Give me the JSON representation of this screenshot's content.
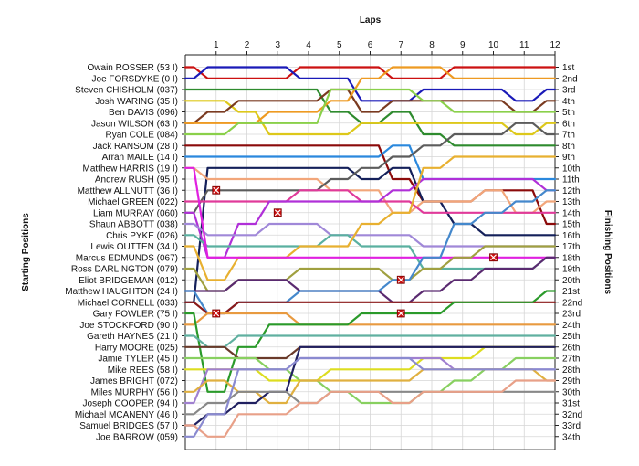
{
  "chart_data": {
    "type": "line",
    "title": "",
    "xlabel": "Laps",
    "ylabel_left": "Starting Positions",
    "ylabel_right": "Finishing Positions",
    "x": [
      0,
      1,
      2,
      3,
      4,
      5,
      6,
      7,
      8,
      9,
      10,
      11,
      12
    ],
    "x_tick_labels": [
      "1",
      "2",
      "3",
      "4",
      "5",
      "6",
      "7",
      "8",
      "9",
      "10",
      "11",
      "12"
    ],
    "ylim": [
      1,
      34
    ],
    "y_inverted": true,
    "grid": true,
    "drivers": [
      "Owain ROSSER (53 I)",
      "Joe FORSDYKE (0 I)",
      "Steven CHISHOLM (037)",
      "Josh WARING (35 I)",
      "Ben DAVIS (096)",
      "Jason WILSON (63 I)",
      "Ryan COLE (084)",
      "Jack RANSOM (28 I)",
      "Arran MAILE (14 I)",
      "Matthew HARRIS (19 I)",
      "Andrew RUSH (95 I)",
      "Matthew ALLNUTT (36 I)",
      "Michael GREEN (022)",
      "Liam MURRAY (060)",
      "Shaun ABBOTT (038)",
      "Chris PYKE (026)",
      "Lewis OUTTEN (34 I)",
      "Marcus EDMUNDS (067)",
      "Ross DARLINGTON (079)",
      "Eliot BRIDGEMAN (012)",
      "Matthew HAUGHTON (24 I)",
      "Michael CORNELL (033)",
      "Gary FOWLER (75 I)",
      "Joe STOCKFORD (90 I)",
      "Gareth HAYNES (21 I)",
      "Harry MOORE (025)",
      "Jamie TYLER (45 I)",
      "Mike REES (58 I)",
      "James BRIGHT (072)",
      "Miles MURPHY (56 I)",
      "Joseph COOPER (94 I)",
      "Michael MCANENY (46 I)",
      "Samuel BRIDGES (57 I)",
      "Joe BARROW (059)"
    ],
    "finishing_labels": [
      "1st",
      "2nd",
      "3rd",
      "4th",
      "5th",
      "6th",
      "7th",
      "8th",
      "9th",
      "10th",
      "11th",
      "12th",
      "13th",
      "14th",
      "15th",
      "16th",
      "17th",
      "18th",
      "19th",
      "20th",
      "21st",
      "22nd",
      "23rd",
      "24th",
      "25th",
      "26th",
      "27th",
      "28th",
      "29th",
      "30th",
      "31st",
      "32nd",
      "33rd",
      "34th"
    ],
    "series": [
      {
        "driver": "Owain ROSSER (53 I)",
        "color": "#cc1111",
        "positions": [
          1,
          2,
          2,
          2,
          1,
          1,
          1,
          2,
          2,
          1,
          1,
          1,
          1
        ]
      },
      {
        "driver": "Joe FORSDYKE (0 I)",
        "color": "#1a1ab8",
        "positions": [
          2,
          1,
          1,
          1,
          2,
          2,
          4,
          4,
          3,
          3,
          3,
          4,
          3
        ]
      },
      {
        "driver": "Steven CHISHOLM (037)",
        "color": "#2e8b2e",
        "positions": [
          3,
          3,
          3,
          3,
          3,
          5,
          6,
          5,
          7,
          8,
          8,
          8,
          8
        ]
      },
      {
        "driver": "Josh WARING (35 I)",
        "color": "#ddc81a",
        "positions": [
          4,
          4,
          5,
          7,
          7,
          7,
          6,
          6,
          6,
          6,
          6,
          7,
          6
        ]
      },
      {
        "driver": "Ben DAVIS (096)",
        "color": "#7a3a20",
        "positions": [
          6,
          5,
          4,
          4,
          4,
          3,
          5,
          4,
          4,
          4,
          4,
          5,
          4
        ]
      },
      {
        "driver": "Jason WILSON (63 I)",
        "color": "#ee9a22",
        "positions": [
          6,
          6,
          6,
          5,
          5,
          4,
          2,
          1,
          1,
          2,
          2,
          2,
          2
        ]
      },
      {
        "driver": "Ryan COLE (084)",
        "color": "#8ad04a",
        "positions": [
          7,
          7,
          6,
          6,
          6,
          3,
          3,
          3,
          4,
          5,
          5,
          5,
          5
        ]
      },
      {
        "driver": "Jack RANSOM (28 I)",
        "color": "#8b0a0a",
        "positions": [
          8,
          8,
          8,
          8,
          8,
          8,
          8,
          11,
          13,
          13,
          12,
          12,
          15
        ]
      },
      {
        "driver": "Arran MAILE (14 I)",
        "color": "#2a88dd",
        "positions": [
          9,
          9,
          9,
          9,
          9,
          9,
          9,
          8,
          11,
          11,
          11,
          11,
          11
        ]
      },
      {
        "driver": "Matthew HARRIS (19 I)",
        "color": "#14205a",
        "positions": [
          22,
          10,
          10,
          10,
          10,
          10,
          11,
          10,
          13,
          15,
          16,
          16,
          16
        ]
      },
      {
        "driver": "Andrew RUSH (95 I)",
        "color": "#f2a67a",
        "positions": [
          10,
          11,
          11,
          11,
          11,
          12,
          12,
          14,
          13,
          13,
          12,
          14,
          13
        ]
      },
      {
        "driver": "Matthew ALLNUTT (36 I)",
        "color": "#5c5c5c",
        "positions": [
          14,
          12,
          12,
          12,
          12,
          11,
          10,
          9,
          8,
          7,
          7,
          6,
          7
        ]
      },
      {
        "driver": "Michael GREEN (022)",
        "color": "#e03a9a",
        "positions": [
          13,
          13,
          13,
          13,
          12,
          12,
          13,
          13,
          14,
          14,
          14,
          14,
          14
        ]
      },
      {
        "driver": "Liam MURRAY (060)",
        "color": "#b030d8",
        "positions": [
          14,
          18,
          15,
          13,
          13,
          13,
          13,
          12,
          11,
          11,
          11,
          11,
          12
        ]
      },
      {
        "driver": "Shaun ABBOTT (038)",
        "color": "#a088d8",
        "positions": [
          15,
          16,
          16,
          15,
          15,
          16,
          16,
          16,
          17,
          17,
          17,
          17,
          17
        ]
      },
      {
        "driver": "Chris PYKE (026)",
        "color": "#5ab0a0",
        "positions": [
          16,
          17,
          17,
          17,
          17,
          16,
          17,
          17,
          19,
          19,
          19,
          19,
          18
        ]
      },
      {
        "driver": "Lewis OUTTEN (34 I)",
        "color": "#e8b030",
        "positions": [
          17,
          20,
          18,
          18,
          17,
          17,
          15,
          14,
          10,
          9,
          9,
          9,
          9
        ]
      },
      {
        "driver": "Marcus EDMUNDS (067)",
        "color": "#e020e0",
        "positions": [
          10,
          18,
          18,
          18,
          18,
          18,
          18,
          18,
          18,
          18,
          18,
          18,
          18
        ]
      },
      {
        "driver": "Ross DARLINGTON (079)",
        "color": "#a0a040",
        "positions": [
          19,
          21,
          20,
          20,
          19,
          19,
          19,
          20,
          19,
          18,
          17,
          17,
          17
        ]
      },
      {
        "driver": "Eliot BRIDGEMAN (012)",
        "color": "#5a2a70",
        "positions": [
          21,
          21,
          20,
          20,
          21,
          21,
          21,
          22,
          21,
          20,
          19,
          19,
          18
        ]
      },
      {
        "driver": "Matthew HAUGHTON (24 I)",
        "color": "#4488cc",
        "positions": [
          21,
          23,
          22,
          22,
          21,
          21,
          21,
          20,
          18,
          15,
          14,
          13,
          12
        ]
      },
      {
        "driver": "Michael CORNELL (033)",
        "color": "#8b1a1a",
        "positions": [
          22,
          23,
          22,
          22,
          22,
          22,
          22,
          22,
          22,
          22,
          22,
          22,
          22
        ]
      },
      {
        "driver": "Gary FOWLER (75 I)",
        "color": "#e89a40",
        "positions": [
          24,
          23,
          23,
          23,
          24,
          24,
          24,
          24,
          24,
          24,
          24,
          24,
          24
        ]
      },
      {
        "driver": "Joe STOCKFORD (90 I)",
        "color": "#2a9a2a",
        "positions": [
          23,
          30,
          26,
          24,
          24,
          24,
          23,
          23,
          23,
          22,
          22,
          22,
          21
        ]
      },
      {
        "driver": "Gareth HAYNES (21 I)",
        "color": "#60b0a0",
        "positions": [
          25,
          26,
          25,
          25,
          25,
          25,
          25,
          25,
          25,
          25,
          25,
          25,
          25
        ]
      },
      {
        "driver": "Harry MOORE (025)",
        "color": "#6a3a2a",
        "positions": [
          26,
          26,
          27,
          27,
          26,
          26,
          26,
          26,
          26,
          26,
          26,
          26,
          26
        ]
      },
      {
        "driver": "Jamie TYLER (45 I)",
        "color": "#dddd20",
        "positions": [
          28,
          28,
          28,
          29,
          29,
          28,
          28,
          28,
          27,
          27,
          26,
          26,
          26
        ]
      },
      {
        "driver": "Mike REES (58 I)",
        "color": "#88d060",
        "positions": [
          27,
          27,
          27,
          28,
          29,
          30,
          31,
          31,
          30,
          29,
          28,
          27,
          27
        ]
      },
      {
        "driver": "James BRIGHT (072)",
        "color": "#a080d0",
        "positions": [
          31,
          28,
          28,
          28,
          27,
          27,
          27,
          27,
          27,
          28,
          28,
          28,
          28
        ]
      },
      {
        "driver": "Miles MURPHY (56 I)",
        "color": "#e0b040",
        "positions": [
          30,
          29,
          30,
          31,
          29,
          29,
          29,
          29,
          28,
          28,
          28,
          28,
          29
        ]
      },
      {
        "driver": "Joseph COOPER (94 I)",
        "color": "#202060",
        "positions": [
          33,
          32,
          31,
          30,
          26,
          26,
          26,
          26,
          26,
          26,
          26,
          26,
          26
        ]
      },
      {
        "driver": "Michael MCANENY (46 I)",
        "color": "#888888",
        "positions": [
          32,
          31,
          30,
          30,
          31,
          30,
          30,
          30,
          30,
          30,
          30,
          30,
          30
        ]
      },
      {
        "driver": "Samuel BRIDGES (57 I)",
        "color": "#e8a088",
        "positions": [
          33,
          34,
          32,
          32,
          31,
          30,
          30,
          31,
          30,
          30,
          30,
          29,
          29
        ]
      },
      {
        "driver": "Joe BARROW (059)",
        "color": "#8a8ad0",
        "positions": [
          34,
          32,
          28,
          28,
          27,
          27,
          27,
          27,
          28,
          28,
          28,
          28,
          28
        ]
      }
    ],
    "retirements": [
      {
        "driver": "Matthew ALLNUTT (36 I)",
        "lap": 1,
        "position": 12
      },
      {
        "driver": "Liam MURRAY (060)",
        "lap": 3,
        "position": 14
      },
      {
        "driver": "Gary FOWLER (75 I)",
        "lap": 1,
        "position": 23
      },
      {
        "driver": "Ross DARLINGTON (079)",
        "lap": 7,
        "position": 20
      },
      {
        "driver": "Gary FOWLER (75 I)",
        "lap": 7,
        "position": 23
      },
      {
        "driver": "Marcus EDMUNDS (067)",
        "lap": 10,
        "position": 18
      }
    ]
  }
}
